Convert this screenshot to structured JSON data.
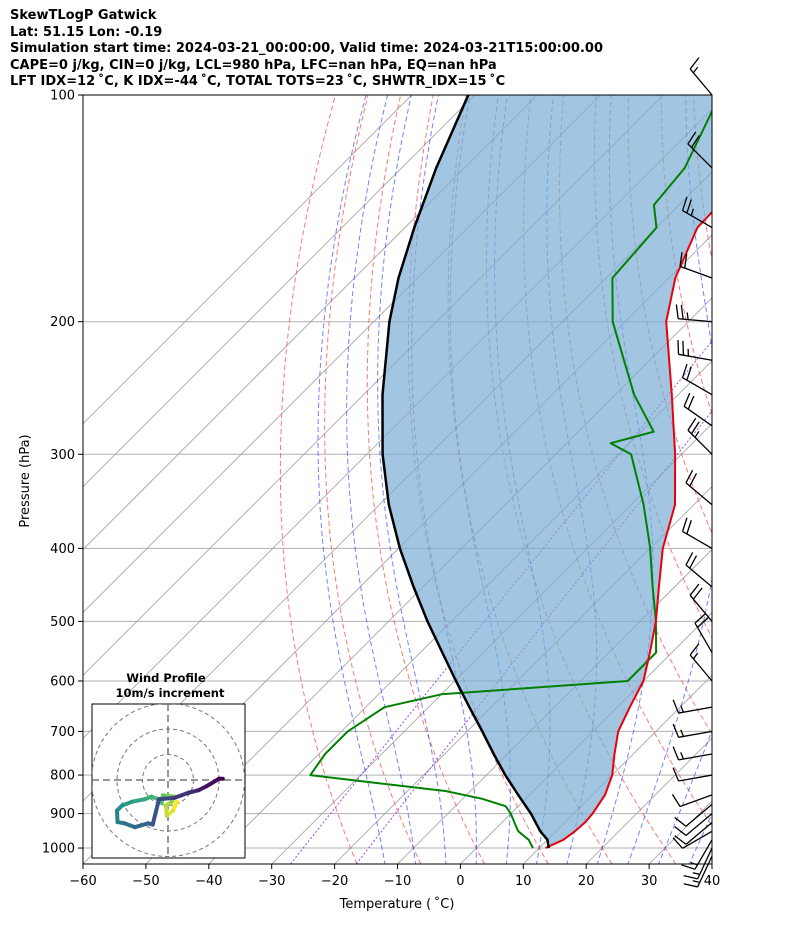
{
  "header": {
    "line1": "SkewTLogP Gatwick",
    "line2": "Lat: 51.15   Lon: -0.19",
    "line3": "Simulation start time: 2024-03-21_00:00:00, Valid time: 2024-03-21T15:00:00.00",
    "line4": "CAPE=0 j/kg, CIN=0 j/kg, LCL=980 hPa, LFC=nan hPa, EQ=nan hPa",
    "line5": "LFT IDX=12 ˚C, K IDX=-44 ˚C, TOTAL TOTS=23 ˚C, SHWTR_IDX=15 ˚C"
  },
  "chart_data": {
    "type": "skewt",
    "xlabel": "Temperature ( ˚C)",
    "ylabel": "Pressure (hPa)",
    "xlim": [
      -60,
      40
    ],
    "ylim": [
      1050,
      100
    ],
    "x_ticks": [
      -60,
      -50,
      -40,
      -30,
      -20,
      -10,
      0,
      10,
      20,
      30,
      40
    ],
    "x_tick_labels": [
      "−60",
      "−50",
      "−40",
      "−30",
      "−20",
      "−10",
      "0",
      "10",
      "20",
      "30",
      "40"
    ],
    "y_ticks": [
      1000,
      900,
      800,
      700,
      600,
      500,
      400,
      300,
      200,
      100
    ],
    "y_tick_labels": [
      "1000",
      "900",
      "800",
      "700",
      "600",
      "500",
      "400",
      "300",
      "200",
      "100"
    ],
    "colors": {
      "temperature": "#e8000b",
      "dewpoint": "#008000",
      "parcel": "#000000",
      "cin_shade": "#7aaed4",
      "dry_adiabat": "#f25a5a",
      "moist_adiabat": "#2a3dff",
      "mixing_ratio": "#8a2be2",
      "isotherm": "#9e9e9e"
    },
    "temperature": {
      "p": [
        1000,
        975,
        950,
        925,
        900,
        850,
        800,
        750,
        700,
        650,
        600,
        550,
        500,
        450,
        400,
        350,
        300,
        250,
        200,
        175,
        150,
        125,
        100
      ],
      "t": [
        11.0,
        12.5,
        13.0,
        13.2,
        13.0,
        12.0,
        10.0,
        7.0,
        4.0,
        2.0,
        0.0,
        -3.5,
        -7.5,
        -12.5,
        -18.0,
        -23.0,
        -31.0,
        -41.0,
        -53.5,
        -59.0,
        -63.5,
        -64.0,
        -68.0
      ]
    },
    "dewpoint": {
      "p": [
        1000,
        975,
        950,
        925,
        900,
        880,
        860,
        840,
        820,
        800,
        750,
        700,
        650,
        625,
        600,
        550,
        500,
        450,
        400,
        350,
        300,
        290,
        280,
        250,
        200,
        175,
        150,
        140,
        125,
        100
      ],
      "td": [
        9.0,
        7.0,
        4.0,
        2.0,
        0.0,
        -2.0,
        -7.0,
        -14.0,
        -26.0,
        -38.0,
        -39.0,
        -39.0,
        -37.0,
        -30.0,
        -2.5,
        -2.5,
        -7.5,
        -13.5,
        -20.0,
        -28.0,
        -38.0,
        -43.0,
        -38.0,
        -47.0,
        -62.0,
        -69.0,
        -70.0,
        -74.0,
        -75.0,
        -81.0
      ]
    },
    "parcel": {
      "p": [
        1000,
        975,
        950,
        900,
        850,
        800,
        750,
        700,
        650,
        600,
        550,
        500,
        450,
        400,
        350,
        300,
        250,
        200,
        175,
        150,
        125,
        100
      ],
      "t": [
        11.5,
        10.0,
        7.5,
        3.2,
        -1.8,
        -7.0,
        -12.2,
        -17.6,
        -23.5,
        -29.8,
        -36.5,
        -43.8,
        -51.5,
        -59.8,
        -68.5,
        -77.5,
        -87.0,
        -97.5,
        -103.0,
        -108.5,
        -114.5,
        -121.0
      ]
    },
    "isotherms": [
      -130,
      -120,
      -110,
      -100,
      -90,
      -80,
      -70,
      -60,
      -50,
      -40,
      -30,
      -20,
      -10,
      0,
      10,
      20,
      30,
      40
    ],
    "dry_adiabats_theta_C": [
      -20,
      -10,
      0,
      10,
      20,
      30,
      40,
      50,
      60,
      70,
      80,
      90,
      100
    ],
    "moist_adiabats_T1000_C": [
      -15,
      -10,
      -5,
      0,
      5,
      10,
      15,
      20,
      25,
      30,
      35
    ],
    "mixing_ratio_lines_gkg": [
      0.4,
      1
    ],
    "wind_barbs": {
      "p": [
        100,
        125,
        150,
        175,
        200,
        225,
        250,
        275,
        300,
        350,
        400,
        450,
        500,
        550,
        600,
        650,
        700,
        750,
        800,
        850,
        875,
        900,
        925,
        950,
        975,
        1000,
        1025
      ],
      "speed_kt": [
        15,
        20,
        25,
        20,
        25,
        25,
        20,
        20,
        25,
        20,
        20,
        20,
        20,
        20,
        15,
        15,
        15,
        15,
        10,
        10,
        10,
        10,
        10,
        10,
        15,
        15,
        15
      ],
      "dir_deg": [
        320,
        315,
        300,
        290,
        275,
        280,
        300,
        305,
        315,
        310,
        300,
        310,
        320,
        330,
        320,
        260,
        260,
        260,
        260,
        250,
        230,
        230,
        230,
        240,
        210,
        205,
        205
      ]
    },
    "hodograph": {
      "title_line1": "Wind Profile",
      "title_line2": "10m/s increment",
      "rings_ms": [
        10,
        20,
        30
      ],
      "u": [
        3.5,
        2.0,
        -0.5,
        -0.8,
        1.5,
        2.5,
        -2.0,
        -2.5,
        -4.0,
        -6.5,
        -9.0,
        -14.0,
        -18.0,
        -20.0,
        -19.8,
        -17.0,
        -13.0,
        -7.8,
        -6.0,
        -3.5,
        2.5,
        8.0,
        12.0,
        15.0,
        20.0,
        21.5
      ],
      "v": [
        -8.5,
        -12.0,
        -14.0,
        -10.0,
        -8.5,
        -6.5,
        -6.0,
        -9.0,
        -7.5,
        -6.5,
        -7.5,
        -8.5,
        -10.0,
        -12.0,
        -16.5,
        -17.0,
        -18.5,
        -17.0,
        -17.5,
        -7.5,
        -7.0,
        -5.0,
        -4.0,
        -2.5,
        0.5,
        0.5
      ]
    }
  }
}
